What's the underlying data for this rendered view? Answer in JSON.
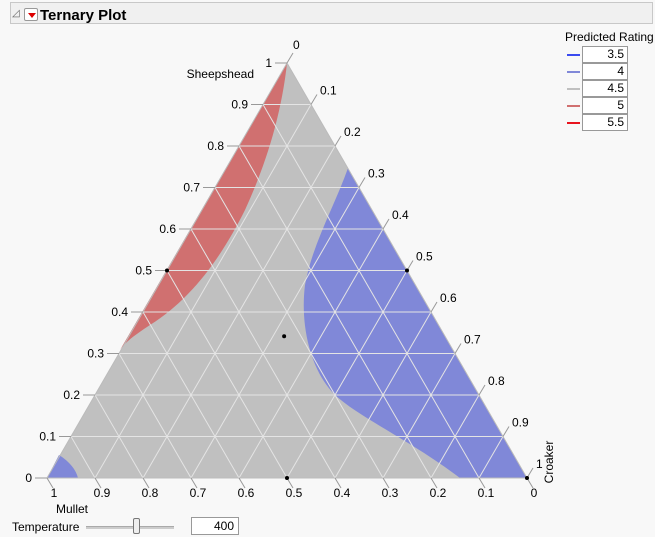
{
  "header": {
    "title": "Ternary Plot"
  },
  "chart_data": {
    "type": "ternary contour",
    "axes": {
      "left": {
        "label": "Sheepshead",
        "ticks": [
          "0",
          "0.1",
          "0.2",
          "0.3",
          "0.4",
          "0.5",
          "0.6",
          "0.7",
          "0.8",
          "0.9",
          "1"
        ]
      },
      "right": {
        "label": "Croaker",
        "ticks": [
          "0",
          "0.1",
          "0.2",
          "0.3",
          "0.4",
          "0.5",
          "0.6",
          "0.7",
          "0.8",
          "0.9",
          "1"
        ]
      },
      "bottom": {
        "label": "Mullet",
        "ticks": [
          "1",
          "0.9",
          "0.8",
          "0.7",
          "0.6",
          "0.5",
          "0.4",
          "0.3",
          "0.2",
          "0.1",
          "0"
        ]
      }
    },
    "legend": {
      "title": "Predicted Rating",
      "placement": "top-right",
      "entries": [
        {
          "value": "3.5",
          "color": "#3a4bf0"
        },
        {
          "value": "4",
          "color": "#8088d8"
        },
        {
          "value": "4.5",
          "color": "#c0c0c0"
        },
        {
          "value": "5",
          "color": "#d07070"
        },
        {
          "value": "5.5",
          "color": "#e8141e"
        }
      ]
    },
    "regions": [
      {
        "level": "5",
        "color": "#d07070"
      },
      {
        "level": "4.5",
        "color": "#c0c0c0"
      },
      {
        "level": "4",
        "color": "#8088d8"
      }
    ],
    "points": [
      {
        "sheepshead": 0.5,
        "croaker": 0.5,
        "mullet": 0
      },
      {
        "sheepshead": 0.5,
        "croaker": 0,
        "mullet": 0.5
      },
      {
        "sheepshead": 0.33,
        "croaker": 0.33,
        "mullet": 0.33
      },
      {
        "sheepshead": 0,
        "croaker": 0.5,
        "mullet": 0.5
      },
      {
        "sheepshead": 0,
        "croaker": 1,
        "mullet": 0
      }
    ]
  },
  "controls": {
    "temperature_label": "Temperature",
    "temperature_value": "400"
  }
}
